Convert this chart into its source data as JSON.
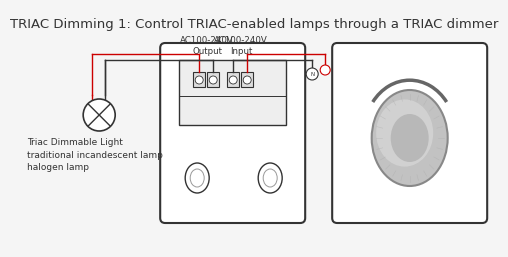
{
  "title": "TRIAC Dimming 1: Control TRIAC-enabled lamps through a TRIAC dimmer",
  "title_fontsize": 9.5,
  "bg_color": "#f5f5f5",
  "line_color": "#333333",
  "red_color": "#cc0000",
  "label_output": "AC100-240V\nOutput",
  "label_input": "AC100-240V\nInput",
  "label_lamp": "Triac Dimmable Light\ntraditional incandescent lamp\nhalogen lamp",
  "text_color": "#333333",
  "small_fontsize": 6.5,
  "knob_outer": "#c8c8c8",
  "knob_mid": "#d5d5d5",
  "knob_inner": "#bebebe",
  "knob_edge": "#999999",
  "arc_color": "#888888"
}
